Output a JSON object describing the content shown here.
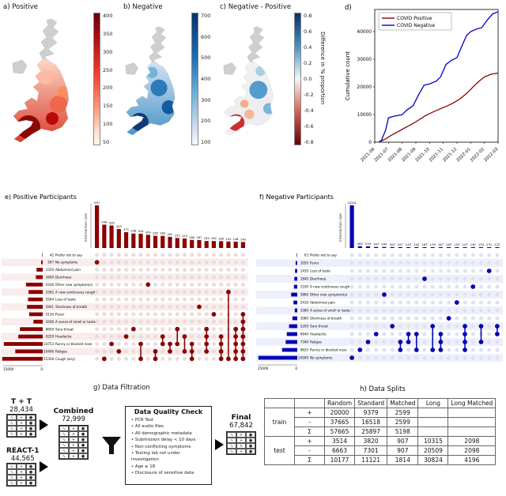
{
  "panels": {
    "a": {
      "label": "a) Positive"
    },
    "b": {
      "label": "b) Negative"
    },
    "c": {
      "label": "c) Negative - Positive",
      "colorbar_label": "Difference in % proportion"
    },
    "d": {
      "label": "d)"
    },
    "g": {
      "title": "g) Data Filtration",
      "sources": [
        {
          "name": "T + T",
          "count": "28,434"
        },
        {
          "name": "REACT-1",
          "count": "44,565"
        }
      ],
      "combined": {
        "name": "Combined",
        "count": "72,999"
      },
      "quality_check": {
        "title": "Data Quality Check",
        "items": [
          "PCR Test",
          "All audio files",
          "All demographic metadata",
          "Submission delay < 10 days",
          "Non-conflicting symptoms",
          "Testing lab not under investigation",
          "Age ≥ 18",
          "Disclosure of sensitive data"
        ]
      },
      "final": {
        "name": "Final",
        "count": "67,842"
      }
    },
    "h": {
      "label": "h) Data Splits"
    }
  },
  "maps": {
    "no_data_color": "#cfcfcf",
    "positive_cmap": [
      "#fff5f0",
      "#67000d"
    ],
    "negative_cmap": [
      "#f7fbff",
      "#08306b"
    ],
    "diverging_cmap": [
      "#67000d",
      "#f7f7f7",
      "#08306b"
    ]
  },
  "colorbars": {
    "a": {
      "ticks": [
        "400",
        "350",
        "300",
        "250",
        "200",
        "150",
        "100",
        "50"
      ]
    },
    "b": {
      "ticks": [
        "700",
        "600",
        "500",
        "400",
        "300",
        "200",
        "100"
      ]
    },
    "c": {
      "ticks": [
        "0.8",
        "0.6",
        "0.4",
        "0.2",
        "0.0",
        "-0.2",
        "-0.4",
        "-0.6",
        "-0.8"
      ]
    }
  },
  "chart_data": [
    {
      "id": "d",
      "type": "line",
      "title": "d)",
      "ylabel": "Cumulative count",
      "x_ticks": [
        "2021-06",
        "2021-07",
        "2021-08",
        "2021-09",
        "2021-10",
        "2021-11",
        "2021-12",
        "2022-01",
        "2022-02",
        "2022-03"
      ],
      "ylim": [
        0,
        48000
      ],
      "y_ticks": [
        0,
        10000,
        20000,
        30000,
        40000
      ],
      "legend_position": "upper left",
      "series": [
        {
          "name": "COVID Positive",
          "color": "#8b0000",
          "points": [
            [
              0.3,
              0
            ],
            [
              0.8,
              1200
            ],
            [
              1.2,
              2500
            ],
            [
              1.7,
              3800
            ],
            [
              2.2,
              5200
            ],
            [
              2.7,
              6500
            ],
            [
              3.2,
              8000
            ],
            [
              3.7,
              9600
            ],
            [
              4.2,
              10800
            ],
            [
              4.7,
              11900
            ],
            [
              5.2,
              12900
            ],
            [
              5.7,
              14100
            ],
            [
              6.2,
              15600
            ],
            [
              6.7,
              17600
            ],
            [
              7.2,
              20100
            ],
            [
              7.6,
              22000
            ],
            [
              8.0,
              23600
            ],
            [
              8.5,
              24600
            ],
            [
              9.0,
              25000
            ]
          ]
        },
        {
          "name": "COVID Negative",
          "color": "#0000cd",
          "points": [
            [
              0.3,
              0
            ],
            [
              0.5,
              800
            ],
            [
              0.8,
              4500
            ],
            [
              1.0,
              8800
            ],
            [
              1.4,
              9400
            ],
            [
              2.0,
              9900
            ],
            [
              2.3,
              11500
            ],
            [
              2.8,
              13200
            ],
            [
              3.2,
              17200
            ],
            [
              3.6,
              20600
            ],
            [
              4.0,
              21100
            ],
            [
              4.5,
              22100
            ],
            [
              4.8,
              23600
            ],
            [
              5.2,
              28100
            ],
            [
              5.6,
              29600
            ],
            [
              6.0,
              30600
            ],
            [
              6.3,
              34100
            ],
            [
              6.7,
              38600
            ],
            [
              7.0,
              40000
            ],
            [
              7.4,
              40900
            ],
            [
              7.8,
              41400
            ],
            [
              8.2,
              44100
            ],
            [
              8.6,
              46400
            ],
            [
              9.0,
              47200
            ]
          ]
        }
      ]
    },
    {
      "id": "e",
      "type": "upset",
      "title": "e) Positive Participants",
      "color": "#8b0000",
      "dot_light": "#eedada",
      "stripe": "#f8ecec",
      "bar_axis_label": "Intersection size",
      "set_axis_max": 15000,
      "set_axis_ticks": [
        "15000",
        "0"
      ],
      "sets": [
        {
          "label": "Prefer not to say",
          "size": 42
        },
        {
          "label": "No symptoms",
          "size": 597
        },
        {
          "label": "Abdominal pain",
          "size": 2320
        },
        {
          "label": "Diarrhoea",
          "size": 2600
        },
        {
          "label": "Other new symptom(s)",
          "size": 6336
        },
        {
          "label": "A new continuous cough",
          "size": 5365
        },
        {
          "label": "Loss of taste",
          "size": 5564
        },
        {
          "label": "Shortness of breath",
          "size": 5941
        },
        {
          "label": "Fever",
          "size": 5134
        },
        {
          "label": "A sense of smell or taste",
          "size": 3506
        },
        {
          "label": "Sore throat",
          "size": 8659
        },
        {
          "label": "Headache",
          "size": 9259
        },
        {
          "label": "Runny or blocked nose",
          "size": 14753
        },
        {
          "label": "Fatigue",
          "size": 10406
        },
        {
          "label": "Cough (any)",
          "size": 15358
        }
      ],
      "intersections": [
        {
          "value": 997,
          "members": [
            1
          ]
        },
        {
          "value": 546,
          "members": [
            14
          ]
        },
        {
          "value": 526,
          "members": [
            12
          ]
        },
        {
          "value": 443,
          "members": [
            13
          ]
        },
        {
          "value": 371,
          "members": [
            11
          ]
        },
        {
          "value": 338,
          "members": [
            10
          ]
        },
        {
          "value": 334,
          "members": [
            12,
            14
          ]
        },
        {
          "value": 309,
          "members": [
            4
          ]
        },
        {
          "value": 285,
          "members": [
            13,
            14
          ]
        },
        {
          "value": 283,
          "members": [
            11,
            12
          ]
        },
        {
          "value": 261,
          "members": [
            12,
            13
          ]
        },
        {
          "value": 233,
          "members": [
            10,
            12
          ]
        },
        {
          "value": 223,
          "members": [
            11,
            13
          ]
        },
        {
          "value": 189,
          "members": [
            12,
            13,
            14
          ]
        },
        {
          "value": 187,
          "members": [
            7
          ]
        },
        {
          "value": 163,
          "members": [
            10,
            11,
            12,
            13
          ]
        },
        {
          "value": 162,
          "members": [
            8
          ]
        },
        {
          "value": 160,
          "members": [
            11,
            12,
            13,
            14
          ]
        },
        {
          "value": 152,
          "members": [
            5,
            14
          ]
        },
        {
          "value": 148,
          "members": [
            10,
            11,
            12,
            13,
            14
          ]
        },
        {
          "value": 140,
          "members": [
            8,
            9,
            10,
            11,
            12,
            13,
            14
          ]
        }
      ]
    },
    {
      "id": "f",
      "type": "upset",
      "title": "f) Negative Participants",
      "color": "#0000b4",
      "dot_light": "#dde1f6",
      "stripe": "#edf0fa",
      "bar_axis_label": "Intersection size",
      "set_axis_max": 25000,
      "set_axis_ticks": [
        "25000",
        "0"
      ],
      "sets": [
        {
          "label": "Prefer not to say",
          "size": 63
        },
        {
          "label": "Fever",
          "size": 1050
        },
        {
          "label": "Loss of taste",
          "size": 1430
        },
        {
          "label": "Diarrhoea",
          "size": 1840
        },
        {
          "label": "A new continuous cough",
          "size": 2100
        },
        {
          "label": "Other new symptom(s)",
          "size": 3860
        },
        {
          "label": "Abdominal pain",
          "size": 2410
        },
        {
          "label": "A sense of smell or taste",
          "size": 1580
        },
        {
          "label": "Shortness of breath",
          "size": 3080
        },
        {
          "label": "Sore throat",
          "size": 5200
        },
        {
          "label": "Headache",
          "size": 6640
        },
        {
          "label": "Fatigue",
          "size": 7340
        },
        {
          "label": "Runny or blocked nose",
          "size": 9620
        },
        {
          "label": "No symptoms",
          "size": 24590
        }
      ],
      "intersections": [
        {
          "value": 14101,
          "members": [
            13
          ]
        },
        {
          "value": 585,
          "members": [
            12
          ]
        },
        {
          "value": 534,
          "members": [
            11
          ]
        },
        {
          "value": 347,
          "members": [
            10
          ]
        },
        {
          "value": 344,
          "members": [
            5
          ]
        },
        {
          "value": 302,
          "members": [
            9
          ]
        },
        {
          "value": 297,
          "members": [
            11,
            12
          ]
        },
        {
          "value": 243,
          "members": [
            10,
            11
          ]
        },
        {
          "value": 242,
          "members": [
            10,
            12
          ]
        },
        {
          "value": 187,
          "members": [
            3
          ]
        },
        {
          "value": 176,
          "members": [
            9,
            12
          ]
        },
        {
          "value": 167,
          "members": [
            10,
            11,
            12
          ]
        },
        {
          "value": 162,
          "members": [
            8
          ]
        },
        {
          "value": 152,
          "members": [
            6
          ]
        },
        {
          "value": 147,
          "members": [
            9,
            10,
            11,
            12
          ]
        },
        {
          "value": 140,
          "members": [
            4
          ]
        },
        {
          "value": 134,
          "members": [
            9,
            11
          ]
        },
        {
          "value": 131,
          "members": [
            2
          ]
        },
        {
          "value": 122,
          "members": [
            9,
            10
          ]
        }
      ]
    },
    {
      "id": "h",
      "type": "table",
      "title": "h) Data Splits",
      "columns": [
        "Random",
        "Standard",
        "Matched",
        "Long",
        "Long Matched"
      ],
      "row_groups": [
        {
          "name": "train",
          "rows": [
            {
              "sign": "+",
              "values": [
                "20000",
                "9379",
                "2599",
                "",
                ""
              ]
            },
            {
              "sign": "-",
              "values": [
                "37665",
                "16518",
                "2599",
                "",
                ""
              ]
            },
            {
              "sign": "Σ",
              "values": [
                "57665",
                "25897",
                "5198",
                "",
                ""
              ]
            }
          ]
        },
        {
          "name": "test",
          "rows": [
            {
              "sign": "+",
              "values": [
                "3514",
                "3820",
                "907",
                "10315",
                "2098"
              ]
            },
            {
              "sign": "-",
              "values": [
                "6663",
                "7301",
                "907",
                "20509",
                "2098"
              ]
            },
            {
              "sign": "Σ",
              "values": [
                "10177",
                "11121",
                "1814",
                "30824",
                "4196"
              ]
            }
          ]
        }
      ]
    }
  ]
}
